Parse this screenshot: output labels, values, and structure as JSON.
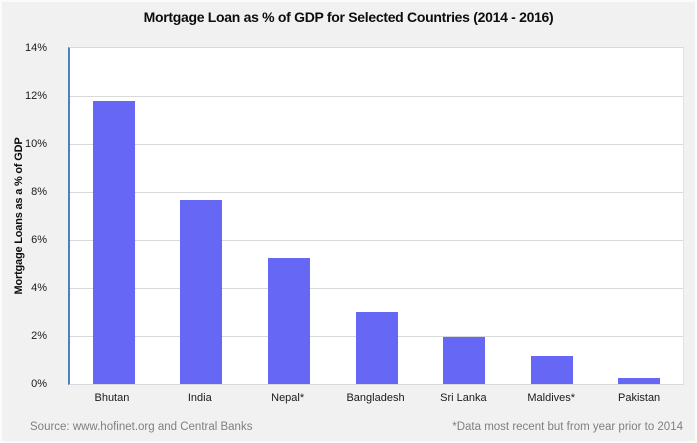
{
  "title": "Mortgage Loan as % of GDP for Selected Countries (2014 - 2016)",
  "footer": {
    "source": "Source: www.hofinet.org and Central Banks",
    "note": "*Data most recent but from year prior to 2014"
  },
  "colors": {
    "bar_fill": "#6667f5",
    "axis_line": "#4f81bd",
    "gridline": "#d9d9d9",
    "page_background": "#f1f1f2",
    "plot_background": "#ffffff",
    "footer_text": "#7f7f7f"
  },
  "chart_data": {
    "type": "bar",
    "title": "Mortgage Loan as % of GDP for Selected Countries (2014 - 2016)",
    "xlabel": "",
    "ylabel": "Mortgage Loans as a % of GDP",
    "categories": [
      "Bhutan",
      "India",
      "Nepal*",
      "Bangladesh",
      "Sri Lanka",
      "Maldives*",
      "Pakistan"
    ],
    "values": [
      11.8,
      7.65,
      5.25,
      3.0,
      1.95,
      1.15,
      0.25
    ],
    "ylim": [
      0,
      14
    ],
    "ytick_step": 2,
    "ytick_labels": [
      "0%",
      "2%",
      "4%",
      "6%",
      "8%",
      "10%",
      "12%",
      "14%"
    ],
    "grid": true,
    "legend": "none"
  }
}
